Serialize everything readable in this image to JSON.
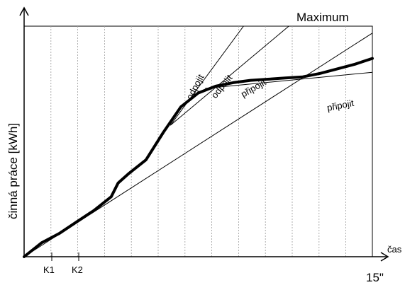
{
  "y_axis_label": "činná práce [kWh]",
  "x_axis_label": "čas",
  "maximum_label": "Maximum",
  "end_time_label": "15\"",
  "markers": [
    "K1",
    "K2"
  ],
  "tangent_labels": {
    "odpojit_1": "odpojit",
    "odpojit_2": "odpojit",
    "pripojit_1": "připojit",
    "pripojit_2": "připojit"
  },
  "colors": {
    "ink": "#000000",
    "grid": "#9a9a9a",
    "background": "#ffffff"
  },
  "chart_data": {
    "type": "line",
    "title": "",
    "xlabel": "čas",
    "ylabel": "činná práce [kWh]",
    "x_end_label": "15\"",
    "reference_line": "Maximum",
    "grid": "vertical dashed",
    "series": [
      {
        "name": "",
        "x": [
          0,
          0.05,
          0.1,
          0.15,
          0.2,
          0.25,
          0.27,
          0.3,
          0.35,
          0.4,
          0.45,
          0.5,
          0.55,
          0.6,
          0.65,
          0.7,
          0.75,
          0.8,
          0.85,
          0.9,
          0.95,
          1.0
        ],
        "y": [
          0,
          0.06,
          0.1,
          0.15,
          0.2,
          0.26,
          0.32,
          0.36,
          0.42,
          0.54,
          0.65,
          0.71,
          0.74,
          0.755,
          0.765,
          0.77,
          0.775,
          0.78,
          0.795,
          0.815,
          0.835,
          0.86
        ]
      }
    ],
    "tangents": [
      {
        "label": "odpojit",
        "from": [
          0.42,
          0.57
        ],
        "to": [
          0.63,
          1.0
        ]
      },
      {
        "label": "odpojit",
        "from": [
          0.42,
          0.57
        ],
        "to": [
          0.76,
          1.0
        ]
      },
      {
        "label": "připojit",
        "from": [
          0.0,
          0.0
        ],
        "to": [
          1.0,
          0.97
        ]
      },
      {
        "label": "připojit",
        "from": [
          0.52,
          0.73
        ],
        "to": [
          1.0,
          0.8
        ]
      }
    ]
  }
}
